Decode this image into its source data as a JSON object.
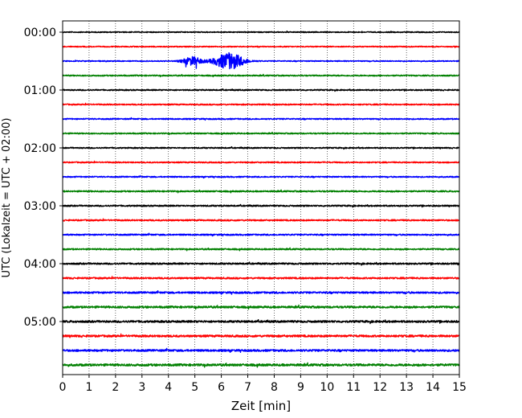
{
  "chart_data": {
    "type": "line",
    "title": "",
    "xlabel": "Zeit  [min]",
    "ylabel": "UTC (Lokalzeit = UTC + 02:00)",
    "xlim": [
      0,
      15
    ],
    "x_ticks": [
      "0",
      "1",
      "2",
      "3",
      "4",
      "5",
      "6",
      "7",
      "8",
      "9",
      "10",
      "11",
      "12",
      "13",
      "14",
      "15"
    ],
    "y_tick_labels": [
      "00:00",
      "01:00",
      "02:00",
      "03:00",
      "04:00",
      "05:00"
    ],
    "grid": "vertical dotted at each minute",
    "trace_interval_min": 15,
    "colors": [
      "#000000",
      "#ff0000",
      "#0000ff",
      "#008000"
    ],
    "traces": [
      {
        "start": "00:00",
        "color": "#000000",
        "noise": 0.25
      },
      {
        "start": "00:15",
        "color": "#ff0000",
        "noise": 0.25
      },
      {
        "start": "00:30",
        "color": "#0000ff",
        "noise": 0.25,
        "event": {
          "bursts": [
            {
              "t": 4.9,
              "width": 0.35,
              "amp": 5
            },
            {
              "t": 6.3,
              "width": 0.55,
              "amp": 10
            }
          ]
        }
      },
      {
        "start": "00:45",
        "color": "#008000",
        "noise": 0.3
      },
      {
        "start": "01:00",
        "color": "#000000",
        "noise": 0.3
      },
      {
        "start": "01:15",
        "color": "#ff0000",
        "noise": 0.3
      },
      {
        "start": "01:30",
        "color": "#0000ff",
        "noise": 0.3
      },
      {
        "start": "01:45",
        "color": "#008000",
        "noise": 0.3
      },
      {
        "start": "02:00",
        "color": "#000000",
        "noise": 0.3
      },
      {
        "start": "02:15",
        "color": "#ff0000",
        "noise": 0.3
      },
      {
        "start": "02:30",
        "color": "#0000ff",
        "noise": 0.3
      },
      {
        "start": "02:45",
        "color": "#008000",
        "noise": 0.35
      },
      {
        "start": "03:00",
        "color": "#000000",
        "noise": 0.35
      },
      {
        "start": "03:15",
        "color": "#ff0000",
        "noise": 0.35
      },
      {
        "start": "03:30",
        "color": "#0000ff",
        "noise": 0.35
      },
      {
        "start": "03:45",
        "color": "#008000",
        "noise": 0.35
      },
      {
        "start": "04:00",
        "color": "#000000",
        "noise": 0.4
      },
      {
        "start": "04:15",
        "color": "#ff0000",
        "noise": 0.4
      },
      {
        "start": "04:30",
        "color": "#0000ff",
        "noise": 0.45
      },
      {
        "start": "04:45",
        "color": "#008000",
        "noise": 0.5
      },
      {
        "start": "05:00",
        "color": "#000000",
        "noise": 0.5
      },
      {
        "start": "05:15",
        "color": "#ff0000",
        "noise": 0.5
      },
      {
        "start": "05:30",
        "color": "#0000ff",
        "noise": 0.5
      },
      {
        "start": "05:45",
        "color": "#008000",
        "noise": 0.55
      }
    ]
  }
}
